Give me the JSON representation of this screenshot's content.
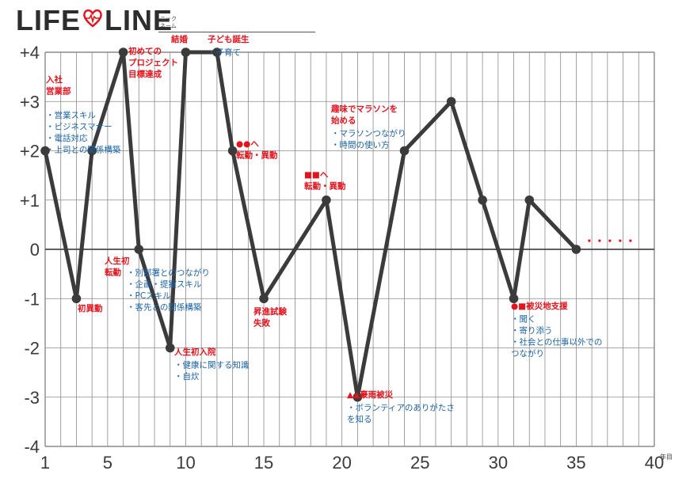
{
  "header": {
    "logo_left": "LIFE",
    "logo_right": "LINE",
    "nickname_label": [
      "ニック",
      "ネーム"
    ]
  },
  "chart_data": {
    "type": "line",
    "title": "LIFE LINE",
    "xlabel": "年目",
    "ylabel": "",
    "xlim": [
      1,
      40
    ],
    "ylim": [
      -4,
      4
    ],
    "x_tick_labels": [
      "1",
      "5",
      "10",
      "15",
      "20",
      "25",
      "30",
      "35",
      "40"
    ],
    "y_tick_labels": [
      "+4",
      "+3",
      "+2",
      "+1",
      "0",
      "-1",
      "-2",
      "-3",
      "-4"
    ],
    "grid": true,
    "series": [
      {
        "x": [
          1,
          3,
          4,
          6,
          7,
          9,
          10,
          12,
          13,
          15,
          19,
          21,
          24,
          27,
          29,
          31,
          32,
          35
        ],
        "y": [
          2,
          -1,
          2,
          4,
          0,
          -2,
          4,
          4,
          2,
          -1,
          1,
          -3,
          2,
          3,
          1,
          -1,
          1,
          0
        ]
      }
    ],
    "continuation_mark": "・・・・・",
    "annotations": [
      {
        "anchor_x": 1,
        "anchor_y": 2,
        "red": [
          "入社",
          "営業部"
        ],
        "blue": [
          "・営業スキル",
          "・ビジネスマナー",
          "・電話対応",
          "・上司との関係構築"
        ]
      },
      {
        "anchor_x": 3,
        "anchor_y": -1,
        "red": [
          "初異動"
        ],
        "blue": []
      },
      {
        "anchor_x": 6,
        "anchor_y": 4,
        "red": [
          "初めての",
          "プロジェクト",
          "目標達成"
        ],
        "blue": []
      },
      {
        "anchor_x": 7,
        "anchor_y": 0,
        "red": [
          "人生初",
          "転勤"
        ],
        "blue": [
          "・別部署とのつながり",
          "・企画・提案スキル",
          "・PCスキル",
          "・客先との関係構築"
        ]
      },
      {
        "anchor_x": 9,
        "anchor_y": -2,
        "red": [
          "人生初入院"
        ],
        "blue": [
          "・健康に関する知識",
          "・自炊"
        ]
      },
      {
        "anchor_x": 10,
        "anchor_y": 4,
        "red": [
          "結婚"
        ],
        "blue": []
      },
      {
        "anchor_x": 12,
        "anchor_y": 4,
        "red": [
          "子ども誕生"
        ],
        "blue": [
          "・子育て"
        ]
      },
      {
        "anchor_x": 13,
        "anchor_y": 2,
        "red": [
          "●●へ",
          "転勤・異動"
        ],
        "blue": []
      },
      {
        "anchor_x": 15,
        "anchor_y": -1,
        "red": [
          "昇進試験",
          "失敗"
        ],
        "blue": []
      },
      {
        "anchor_x": 19,
        "anchor_y": 1,
        "red": [
          "■■へ",
          "転勤・異動"
        ],
        "blue": []
      },
      {
        "anchor_x": 21,
        "anchor_y": -3,
        "red": [
          "▲▲豪雨被災"
        ],
        "blue": [
          "・ボランティアのありがたさ",
          "を知る"
        ]
      },
      {
        "anchor_x": 24,
        "anchor_y": 2,
        "red": [
          "趣味でマラソンを",
          "始める"
        ],
        "blue": [
          "・マラソンつながり",
          "・時間の使い方"
        ]
      },
      {
        "anchor_x": 31,
        "anchor_y": -1,
        "red": [
          "●■被災地支援"
        ],
        "blue": [
          "・聞く",
          "・寄り添う",
          "・社会との仕事以外での",
          "つながり"
        ]
      }
    ]
  },
  "colors": {
    "line": "#3b3b3b",
    "annotation_red": "#e4131c",
    "annotation_blue": "#1b63a6",
    "heart": "#e4131c",
    "grid": "#8a8a8a"
  }
}
